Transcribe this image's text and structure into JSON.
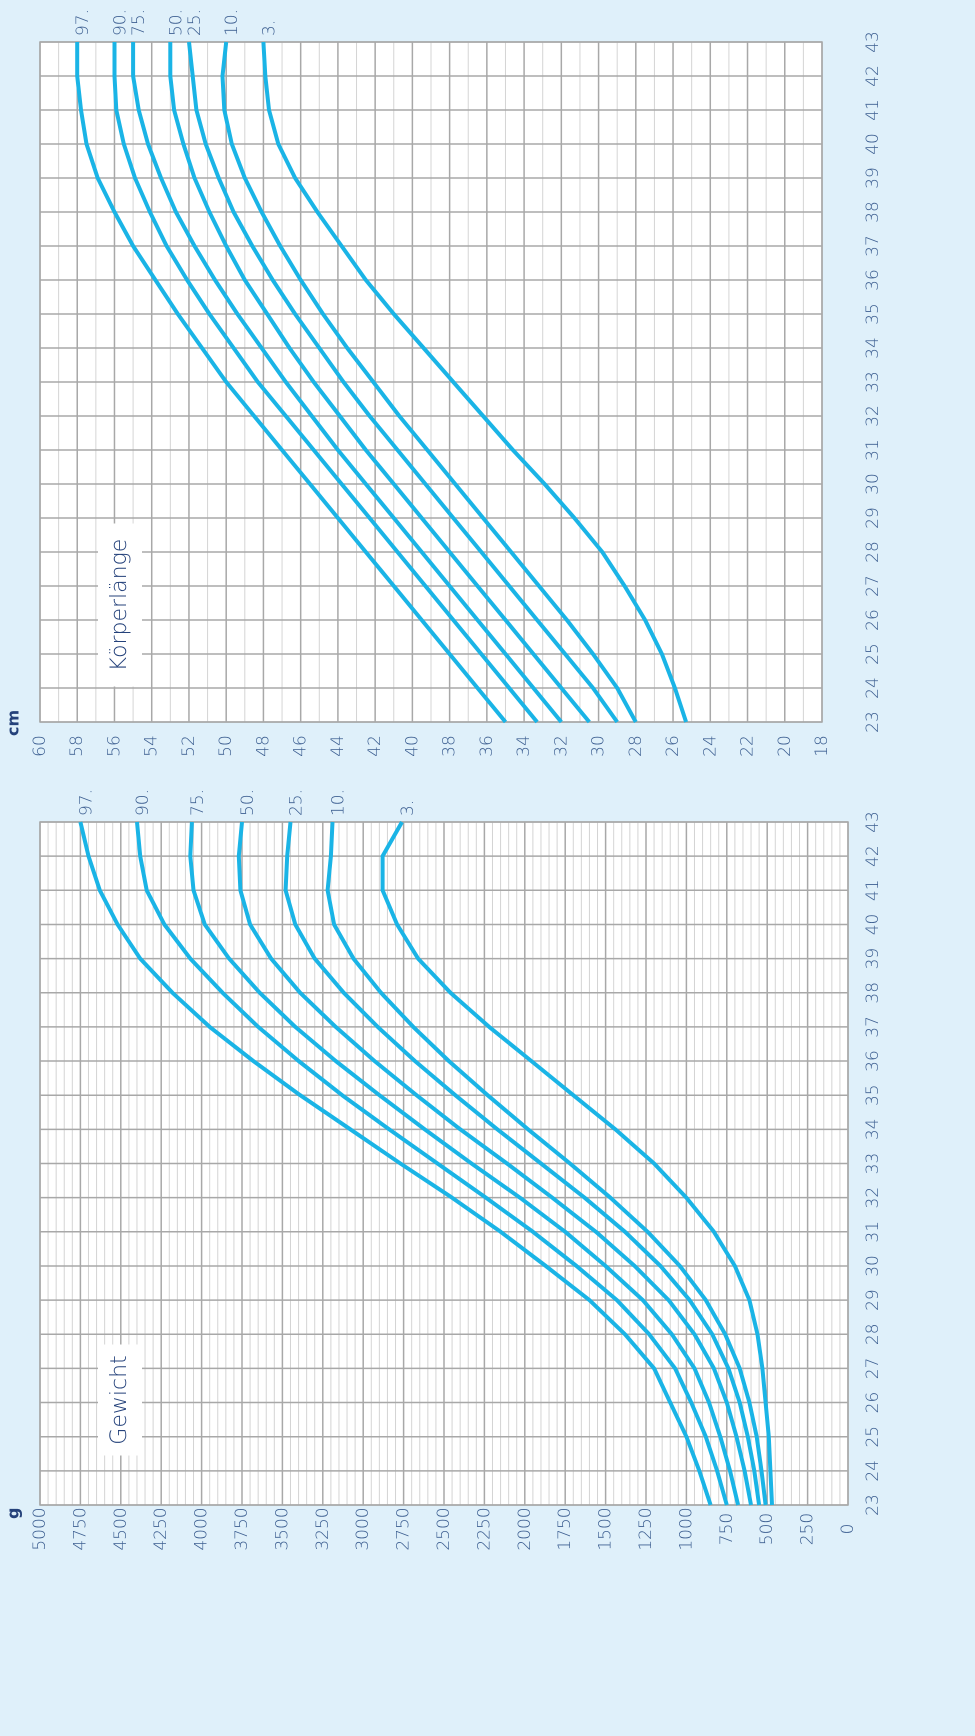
{
  "chart_data": [
    {
      "type": "line",
      "title": "Körperlänge",
      "y_label": "cm",
      "x": [
        23,
        24,
        25,
        26,
        27,
        28,
        29,
        30,
        31,
        32,
        33,
        34,
        35,
        36,
        37,
        38,
        39,
        40,
        41,
        42,
        43
      ],
      "xlim": [
        23,
        43
      ],
      "xticks": [
        23,
        24,
        25,
        26,
        27,
        28,
        29,
        30,
        31,
        32,
        33,
        34,
        35,
        36,
        37,
        38,
        39,
        40,
        41,
        42,
        43
      ],
      "ylim": [
        18,
        60
      ],
      "yticks": [
        18,
        20,
        22,
        24,
        26,
        28,
        30,
        32,
        34,
        36,
        38,
        40,
        42,
        44,
        46,
        48,
        50,
        52,
        54,
        56,
        58,
        60
      ],
      "grid": true,
      "series": [
        {
          "name": "97.",
          "color": "#1ab4e6",
          "label_bold": false,
          "values": [
            35.0,
            36.5,
            38.0,
            39.5,
            41.0,
            42.5,
            44.0,
            45.5,
            47.0,
            48.5,
            50.0,
            51.3,
            52.6,
            53.8,
            55.0,
            56.0,
            56.9,
            57.5,
            57.8,
            58.0,
            58.0
          ]
        },
        {
          "name": "90.",
          "color": "#1ab4e6",
          "label_bold": true,
          "values": [
            33.3,
            34.8,
            36.3,
            37.8,
            39.3,
            40.8,
            42.3,
            43.8,
            45.3,
            46.8,
            48.3,
            49.6,
            50.9,
            52.1,
            53.2,
            54.1,
            54.9,
            55.5,
            55.9,
            56.0,
            56.0
          ]
        },
        {
          "name": "75.",
          "color": "#1ab4e6",
          "label_bold": false,
          "values": [
            32.0,
            33.5,
            35.0,
            36.5,
            38.0,
            39.5,
            41.0,
            42.5,
            44.0,
            45.4,
            46.8,
            48.1,
            49.4,
            50.6,
            51.7,
            52.7,
            53.5,
            54.2,
            54.7,
            55.0,
            55.0
          ]
        },
        {
          "name": "50.",
          "color": "#1ab4e6",
          "label_bold": true,
          "values": [
            30.5,
            32.0,
            33.5,
            35.0,
            36.5,
            38.0,
            39.5,
            41.0,
            42.5,
            43.9,
            45.3,
            46.6,
            47.8,
            49.0,
            50.0,
            50.9,
            51.7,
            52.3,
            52.8,
            53.0,
            53.0
          ]
        },
        {
          "name": "25.",
          "color": "#1ab4e6",
          "label_bold": false,
          "values": [
            29.0,
            30.3,
            31.8,
            33.3,
            34.8,
            36.3,
            37.8,
            39.3,
            40.8,
            42.3,
            43.7,
            45.0,
            46.3,
            47.5,
            48.6,
            49.6,
            50.4,
            51.1,
            51.6,
            51.8,
            52.0
          ]
        },
        {
          "name": "10.",
          "color": "#1ab4e6",
          "label_bold": true,
          "values": [
            28.0,
            29.0,
            30.3,
            31.7,
            33.2,
            34.7,
            36.2,
            37.7,
            39.2,
            40.7,
            42.1,
            43.5,
            44.8,
            46.0,
            47.1,
            48.1,
            49.0,
            49.7,
            50.1,
            50.2,
            50.0
          ]
        },
        {
          "name": "3.",
          "color": "#1ab4e6",
          "label_bold": false,
          "values": [
            25.3,
            25.9,
            26.6,
            27.5,
            28.6,
            29.8,
            31.3,
            32.9,
            34.6,
            36.2,
            37.8,
            39.4,
            41.0,
            42.5,
            43.8,
            45.1,
            46.3,
            47.2,
            47.7,
            47.9,
            48.0
          ]
        }
      ]
    },
    {
      "type": "line",
      "title": "Gewicht",
      "y_label": "g",
      "x": [
        23,
        24,
        25,
        26,
        27,
        28,
        29,
        30,
        31,
        32,
        33,
        34,
        35,
        36,
        37,
        38,
        39,
        40,
        41,
        42,
        43
      ],
      "xlim": [
        23,
        43
      ],
      "xticks": [
        23,
        24,
        25,
        26,
        27,
        28,
        29,
        30,
        31,
        32,
        33,
        34,
        35,
        36,
        37,
        38,
        39,
        40,
        41,
        42,
        43
      ],
      "ylim": [
        0,
        5000
      ],
      "yticks": [
        0,
        250,
        500,
        750,
        1000,
        1250,
        1500,
        1750,
        2000,
        2250,
        2500,
        2750,
        3000,
        3250,
        3500,
        3750,
        4000,
        4250,
        4500,
        4750,
        5000
      ],
      "grid": true,
      "series": [
        {
          "name": "97.",
          "color": "#1ab4e6",
          "label_bold": false,
          "values": [
            850,
            920,
            1000,
            1100,
            1200,
            1380,
            1600,
            1870,
            2150,
            2450,
            2770,
            3080,
            3390,
            3680,
            3950,
            4180,
            4380,
            4520,
            4630,
            4700,
            4750
          ]
        },
        {
          "name": "90.",
          "color": "#1ab4e6",
          "label_bold": true,
          "values": [
            750,
            810,
            880,
            970,
            1070,
            1230,
            1430,
            1680,
            1950,
            2240,
            2540,
            2840,
            3130,
            3400,
            3650,
            3870,
            4070,
            4230,
            4340,
            4380,
            4400
          ]
        },
        {
          "name": "75.",
          "color": "#1ab4e6",
          "label_bold": false,
          "values": [
            680,
            730,
            790,
            860,
            950,
            1090,
            1270,
            1500,
            1750,
            2030,
            2330,
            2620,
            2900,
            3170,
            3420,
            3640,
            3830,
            3980,
            4050,
            4070,
            4060
          ]
        },
        {
          "name": "50.",
          "color": "#1ab4e6",
          "label_bold": true,
          "values": [
            600,
            640,
            690,
            750,
            830,
            950,
            1110,
            1320,
            1560,
            1830,
            2110,
            2400,
            2670,
            2930,
            3170,
            3390,
            3570,
            3700,
            3760,
            3770,
            3750
          ]
        },
        {
          "name": "25.",
          "color": "#1ab4e6",
          "label_bold": false,
          "values": [
            550,
            580,
            620,
            670,
            740,
            840,
            980,
            1160,
            1380,
            1630,
            1900,
            2170,
            2430,
            2680,
            2910,
            3120,
            3300,
            3420,
            3480,
            3470,
            3450
          ]
        },
        {
          "name": "10.",
          "color": "#1ab4e6",
          "label_bold": true,
          "values": [
            510,
            535,
            565,
            610,
            670,
            760,
            880,
            1040,
            1240,
            1470,
            1720,
            1980,
            2230,
            2470,
            2690,
            2890,
            3060,
            3180,
            3220,
            3200,
            3190
          ]
        },
        {
          "name": "3.",
          "color": "#1ab4e6",
          "label_bold": false,
          "values": [
            470,
            480,
            490,
            510,
            530,
            560,
            610,
            700,
            830,
            1000,
            1200,
            1440,
            1700,
            1960,
            2220,
            2460,
            2660,
            2790,
            2880,
            2880,
            2760
          ]
        }
      ]
    }
  ]
}
